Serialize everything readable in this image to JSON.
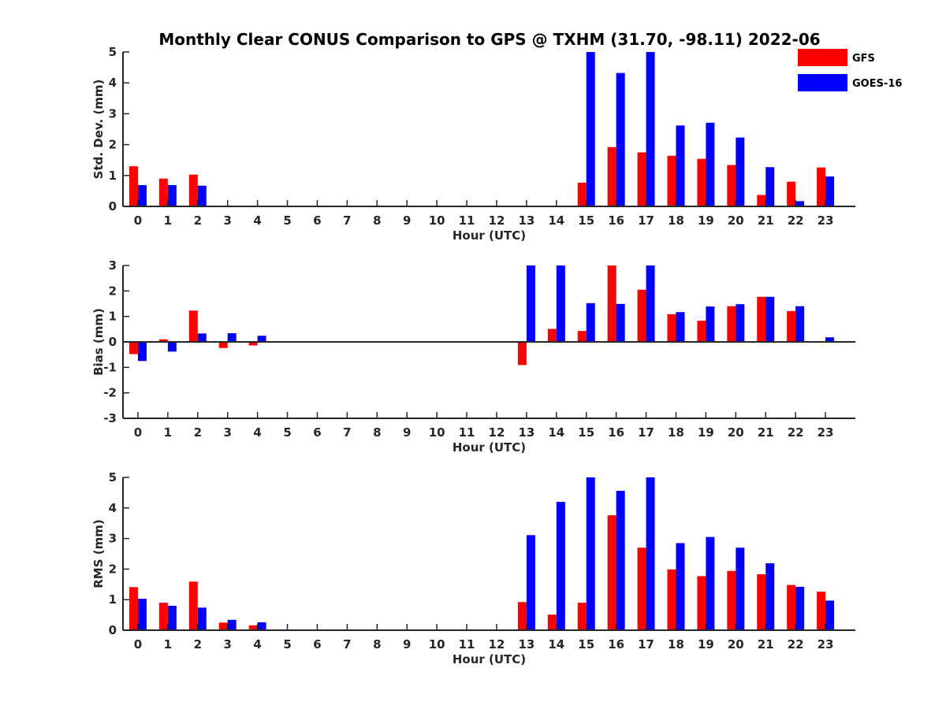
{
  "figure_title": "Monthly Clear CONUS Comparison to GPS @ TXHM (31.70, -98.11) 2022-06",
  "legend": [
    {
      "label": "GFS",
      "color": "#ff0000"
    },
    {
      "label": "GOES-16",
      "color": "#0000ff"
    }
  ],
  "chart_data": [
    {
      "type": "bar",
      "xlabel": "Hour (UTC)",
      "ylabel": "Std. Dev. (mm)",
      "ylim": [
        0,
        5
      ],
      "yticks": [
        0,
        1,
        2,
        3,
        4,
        5
      ],
      "categories": [
        "0",
        "1",
        "2",
        "3",
        "4",
        "5",
        "6",
        "7",
        "8",
        "9",
        "10",
        "11",
        "12",
        "13",
        "14",
        "15",
        "16",
        "17",
        "18",
        "19",
        "20",
        "21",
        "22",
        "23"
      ],
      "series": [
        {
          "name": "GFS",
          "color": "#ff0000",
          "values": [
            1.3,
            0.9,
            1.03,
            null,
            null,
            null,
            null,
            null,
            null,
            null,
            null,
            null,
            null,
            null,
            null,
            0.77,
            1.92,
            1.75,
            1.64,
            1.54,
            1.34,
            0.37,
            0.8,
            1.26
          ]
        },
        {
          "name": "GOES-16",
          "color": "#0000ff",
          "values": [
            0.69,
            0.69,
            0.67,
            null,
            null,
            null,
            null,
            null,
            null,
            null,
            null,
            null,
            null,
            null,
            null,
            5.0,
            4.32,
            5.0,
            2.62,
            2.71,
            2.23,
            1.27,
            0.17,
            0.97
          ]
        }
      ]
    },
    {
      "type": "bar",
      "xlabel": "Hour (UTC)",
      "ylabel": "Bias (mm)",
      "ylim": [
        -3,
        3
      ],
      "yticks": [
        -3,
        -2,
        -1,
        0,
        1,
        2,
        3
      ],
      "categories": [
        "0",
        "1",
        "2",
        "3",
        "4",
        "5",
        "6",
        "7",
        "8",
        "9",
        "10",
        "11",
        "12",
        "13",
        "14",
        "15",
        "16",
        "17",
        "18",
        "19",
        "20",
        "21",
        "22",
        "23"
      ],
      "series": [
        {
          "name": "GFS",
          "color": "#ff0000",
          "values": [
            -0.48,
            0.1,
            1.23,
            -0.24,
            -0.14,
            null,
            null,
            null,
            null,
            null,
            null,
            null,
            null,
            -0.91,
            0.51,
            0.43,
            3.0,
            2.05,
            1.09,
            0.83,
            1.4,
            1.77,
            1.21,
            0.02
          ]
        },
        {
          "name": "GOES-16",
          "color": "#0000ff",
          "values": [
            -0.75,
            -0.38,
            0.33,
            0.34,
            0.24,
            null,
            null,
            null,
            null,
            null,
            null,
            null,
            null,
            3.0,
            3.0,
            1.52,
            1.49,
            3.0,
            1.17,
            1.39,
            1.48,
            1.77,
            1.4,
            0.18
          ]
        }
      ]
    },
    {
      "type": "bar",
      "xlabel": "Hour (UTC)",
      "ylabel": "RMS (mm)",
      "ylim": [
        0,
        5
      ],
      "yticks": [
        0,
        1,
        2,
        3,
        4,
        5
      ],
      "categories": [
        "0",
        "1",
        "2",
        "3",
        "4",
        "5",
        "6",
        "7",
        "8",
        "9",
        "10",
        "11",
        "12",
        "13",
        "14",
        "15",
        "16",
        "17",
        "18",
        "19",
        "20",
        "21",
        "22",
        "23"
      ],
      "series": [
        {
          "name": "GFS",
          "color": "#ff0000",
          "values": [
            1.41,
            0.9,
            1.59,
            0.25,
            0.16,
            null,
            null,
            null,
            null,
            null,
            null,
            null,
            null,
            0.92,
            0.51,
            0.9,
            3.76,
            2.7,
            1.99,
            1.77,
            1.94,
            1.83,
            1.48,
            1.26
          ]
        },
        {
          "name": "GOES-16",
          "color": "#0000ff",
          "values": [
            1.03,
            0.8,
            0.74,
            0.34,
            0.26,
            null,
            null,
            null,
            null,
            null,
            null,
            null,
            null,
            3.11,
            4.2,
            5.0,
            4.56,
            5.0,
            2.85,
            3.05,
            2.7,
            2.19,
            1.42,
            0.97
          ]
        }
      ]
    }
  ]
}
